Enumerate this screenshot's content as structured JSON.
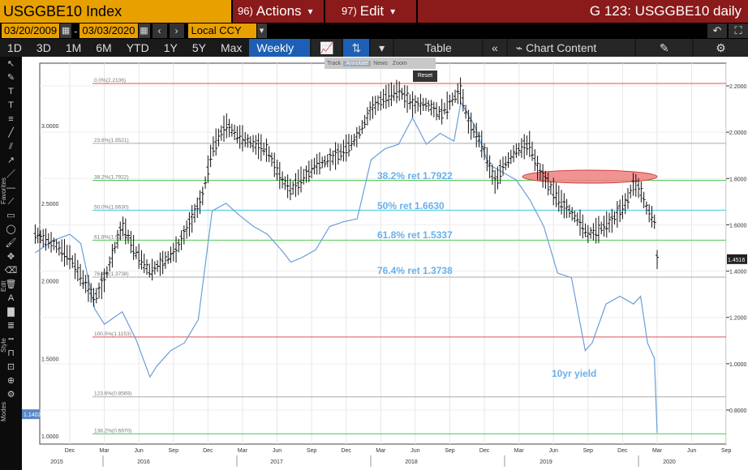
{
  "header": {
    "title": "USGGBE10 Index",
    "actions_num": "96)",
    "actions_label": "Actions",
    "edit_num": "97)",
    "edit_label": "Edit",
    "right_title": "G 123: USGGBE10 daily"
  },
  "range": {
    "start": "03/20/2009",
    "end": "03/03/2020",
    "currency": "Local CCY"
  },
  "periods": [
    "1D",
    "3D",
    "1M",
    "6M",
    "YTD",
    "1Y",
    "5Y",
    "Max"
  ],
  "frequency": "Weekly",
  "toolbar": {
    "table_label": "Table",
    "chart_content_label": "Chart Content"
  },
  "chart_controls": {
    "track": "Track",
    "annotate": "Annotate",
    "news": "News",
    "zoom": "Zoom",
    "reset": "Reset"
  },
  "side_labels": {
    "favorites": "Favorites",
    "edit": "Edit",
    "style": "Style",
    "modes": "Modes"
  },
  "chart_data": {
    "type": "line",
    "series": [
      {
        "name": "USGGBE10 Index",
        "style": "ohlc-bars",
        "color": "#000000"
      },
      {
        "name": "10yr yield",
        "style": "line",
        "color": "#6a9fd8"
      }
    ],
    "annotations": {
      "yield_label": "10yr yield",
      "ret_382": "38.2% ret 1.7922",
      "ret_50": "50% ret 1.6630",
      "ret_618": "61.8% ret 1.5337",
      "ret_764": "76.4% ret 1.3738"
    },
    "fib_levels": [
      {
        "label": "0.0%(2.2106)",
        "value": 2.2106,
        "color": "#e05050"
      },
      {
        "label": "23.6%(1.9521)",
        "value": 1.9521,
        "color": "#aaaaaa"
      },
      {
        "label": "38.2%(1.7922)",
        "value": 1.7922,
        "color": "#50c850"
      },
      {
        "label": "50.0%(1.6630)",
        "value": 1.663,
        "color": "#40c8d8"
      },
      {
        "label": "61.8%(1.5337)",
        "value": 1.5337,
        "color": "#50c850"
      },
      {
        "label": "76.4%(1.3738)",
        "value": 1.3738,
        "color": "#aaaaaa"
      },
      {
        "label": "100.0%(1.1153)",
        "value": 1.1153,
        "color": "#e05050"
      },
      {
        "label": "123.6%(0.8569)",
        "value": 0.8569,
        "color": "#aaaaaa"
      },
      {
        "label": "138.2%(0.6970)",
        "value": 0.697,
        "color": "#50c850"
      }
    ],
    "left_axis": {
      "ticks": [
        "3.0000",
        "2.5000",
        "2.0000",
        "1.5000",
        "1.0000"
      ],
      "values": [
        3.0,
        2.5,
        2.0,
        1.5,
        1.0
      ],
      "last_value": "1.1402"
    },
    "right_axis": {
      "ticks": [
        "2.2000",
        "2.0000",
        "1.8000",
        "1.6000",
        "1.4000",
        "1.2000",
        "1.0000",
        "0.8000"
      ],
      "values": [
        2.2,
        2.0,
        1.8,
        1.6,
        1.4,
        1.2,
        1.0,
        0.8
      ],
      "last_value": "1.4516"
    },
    "x_months": [
      "Dec",
      "Mar",
      "Jun",
      "Sep",
      "Dec",
      "Mar",
      "Jun",
      "Sep",
      "Dec",
      "Mar",
      "Jun",
      "Sep",
      "Dec",
      "Mar",
      "Jun",
      "Sep",
      "Dec",
      "Mar",
      "Jun",
      "Sep"
    ],
    "x_years": [
      "2015",
      "2016",
      "2017",
      "2018",
      "2019",
      "2020"
    ],
    "breakeven_points": [
      [
        2015.67,
        1.56
      ],
      [
        2015.8,
        1.52
      ],
      [
        2015.92,
        1.46
      ],
      [
        2016.0,
        1.38
      ],
      [
        2016.1,
        1.28
      ],
      [
        2016.17,
        1.36
      ],
      [
        2016.3,
        1.6
      ],
      [
        2016.4,
        1.48
      ],
      [
        2016.5,
        1.4
      ],
      [
        2016.6,
        1.44
      ],
      [
        2016.7,
        1.5
      ],
      [
        2016.8,
        1.62
      ],
      [
        2016.88,
        1.72
      ],
      [
        2016.95,
        1.93
      ],
      [
        2017.05,
        2.03
      ],
      [
        2017.15,
        1.98
      ],
      [
        2017.25,
        1.95
      ],
      [
        2017.35,
        1.92
      ],
      [
        2017.45,
        1.8
      ],
      [
        2017.52,
        1.75
      ],
      [
        2017.6,
        1.8
      ],
      [
        2017.7,
        1.86
      ],
      [
        2017.8,
        1.88
      ],
      [
        2017.9,
        1.92
      ],
      [
        2018.0,
        1.98
      ],
      [
        2018.1,
        2.1
      ],
      [
        2018.2,
        2.15
      ],
      [
        2018.3,
        2.18
      ],
      [
        2018.4,
        2.12
      ],
      [
        2018.5,
        2.12
      ],
      [
        2018.6,
        2.08
      ],
      [
        2018.7,
        2.15
      ],
      [
        2018.75,
        2.18
      ],
      [
        2018.8,
        2.05
      ],
      [
        2018.9,
        1.95
      ],
      [
        2019.0,
        1.78
      ],
      [
        2019.05,
        1.85
      ],
      [
        2019.15,
        1.92
      ],
      [
        2019.25,
        1.95
      ],
      [
        2019.3,
        1.85
      ],
      [
        2019.4,
        1.76
      ],
      [
        2019.5,
        1.68
      ],
      [
        2019.6,
        1.62
      ],
      [
        2019.67,
        1.56
      ],
      [
        2019.75,
        1.58
      ],
      [
        2019.85,
        1.62
      ],
      [
        2019.95,
        1.7
      ],
      [
        2020.0,
        1.78
      ],
      [
        2020.05,
        1.75
      ],
      [
        2020.1,
        1.66
      ],
      [
        2020.15,
        1.62
      ],
      [
        2020.17,
        1.45
      ]
    ],
    "yield_points": [
      [
        2015.67,
        2.18
      ],
      [
        2015.8,
        2.26
      ],
      [
        2015.92,
        2.3
      ],
      [
        2016.0,
        2.24
      ],
      [
        2016.1,
        1.82
      ],
      [
        2016.17,
        1.72
      ],
      [
        2016.3,
        1.8
      ],
      [
        2016.4,
        1.62
      ],
      [
        2016.5,
        1.38
      ],
      [
        2016.55,
        1.45
      ],
      [
        2016.65,
        1.55
      ],
      [
        2016.75,
        1.6
      ],
      [
        2016.85,
        1.75
      ],
      [
        2016.95,
        2.45
      ],
      [
        2017.05,
        2.5
      ],
      [
        2017.15,
        2.42
      ],
      [
        2017.25,
        2.35
      ],
      [
        2017.35,
        2.3
      ],
      [
        2017.45,
        2.2
      ],
      [
        2017.52,
        2.12
      ],
      [
        2017.6,
        2.15
      ],
      [
        2017.7,
        2.2
      ],
      [
        2017.8,
        2.35
      ],
      [
        2017.9,
        2.38
      ],
      [
        2018.0,
        2.4
      ],
      [
        2018.1,
        2.78
      ],
      [
        2018.2,
        2.85
      ],
      [
        2018.3,
        2.88
      ],
      [
        2018.4,
        3.05
      ],
      [
        2018.5,
        2.88
      ],
      [
        2018.6,
        2.95
      ],
      [
        2018.7,
        2.9
      ],
      [
        2018.75,
        3.15
      ],
      [
        2018.85,
        3.0
      ],
      [
        2018.95,
        2.75
      ],
      [
        2019.05,
        2.7
      ],
      [
        2019.15,
        2.65
      ],
      [
        2019.25,
        2.52
      ],
      [
        2019.35,
        2.35
      ],
      [
        2019.45,
        2.05
      ],
      [
        2019.55,
        2.02
      ],
      [
        2019.65,
        1.55
      ],
      [
        2019.7,
        1.6
      ],
      [
        2019.8,
        1.85
      ],
      [
        2019.9,
        1.9
      ],
      [
        2020.0,
        1.85
      ],
      [
        2020.05,
        1.9
      ],
      [
        2020.1,
        1.6
      ],
      [
        2020.15,
        1.5
      ],
      [
        2020.17,
        1.02
      ]
    ]
  }
}
